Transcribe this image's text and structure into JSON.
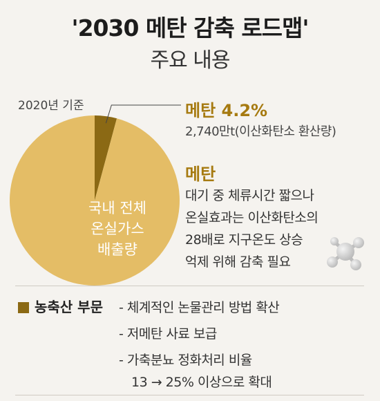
{
  "header": {
    "title": "'2030 메탄 감축 로드맵'",
    "subtitle": "주요 내용"
  },
  "chart_data": {
    "type": "pie",
    "title": "",
    "base_year_note": "2020년 기준",
    "slices": [
      {
        "label": "국내 전체 온실가스 배출량",
        "value": 95.8,
        "color": "#e4bd66"
      },
      {
        "label": "메탄",
        "value": 4.2,
        "color": "#8b6914"
      }
    ],
    "center_label_lines": [
      "국내 전체",
      "온실가스",
      "배출량"
    ]
  },
  "methane_callout": {
    "heading": "메탄 4.2%",
    "detail": "2,740만t(이산화탄소 환산량)"
  },
  "methane_info": {
    "heading": "메탄",
    "lines": [
      "대기 중 체류시간 짧으나",
      "온실효과는 이산화탄소의",
      "28배로 지구온도 상승",
      "억제 위해 감축 필요"
    ]
  },
  "livestock": {
    "label": "농축산 부문",
    "color": "#8b6914",
    "measures": [
      "- 체계적인 논물관리 방법 확산",
      "- 저메탄 사료 보급",
      "- 가축분뇨 정화처리 비율",
      "13 → 25% 이상으로 확대"
    ]
  }
}
